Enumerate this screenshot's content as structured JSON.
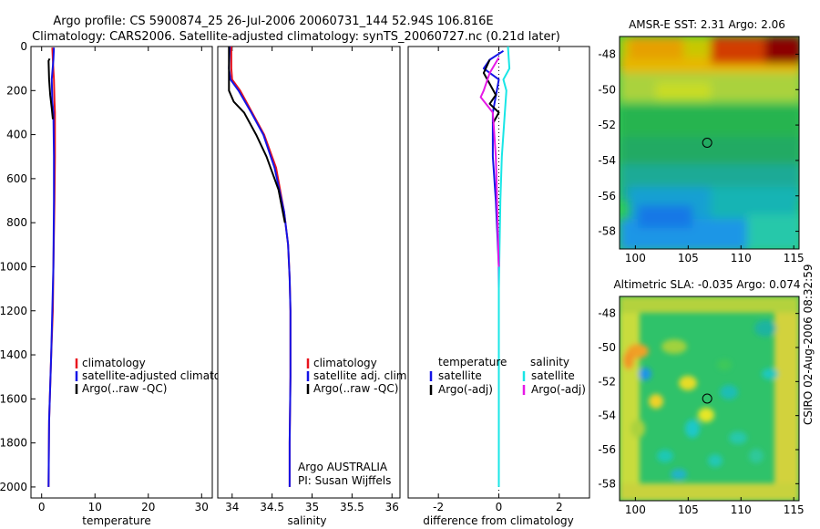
{
  "title": {
    "line1": "Argo profile: CS 5900874_25 26-Jul-2006 20060731_144 52.94S 106.816E",
    "line2": "Climatology: CARS2006. Satellite-adjusted climatology: synTS_20060727.nc (0.21d later)"
  },
  "colors": {
    "climatology": "#e8141e",
    "satellite": "#1414e6",
    "argo": "#000000",
    "satellite_salinity": "#19e6e6",
    "argo_adj_salinity": "#e619e6"
  },
  "chart_data": [
    {
      "id": "temperature",
      "type": "line",
      "xlabel": "temperature",
      "ylabel": "",
      "xlim": [
        -2,
        32
      ],
      "ylim": [
        2050,
        0
      ],
      "xticks": [
        0,
        10,
        20,
        30
      ],
      "yticks": [
        0,
        200,
        400,
        600,
        800,
        1000,
        1200,
        1400,
        1600,
        1800,
        2000
      ],
      "legend": [
        "climatology",
        "satellite-adjusted climatology",
        "Argo(..raw -QC)"
      ],
      "series": [
        {
          "name": "climatology",
          "color_key": "climatology",
          "x": [
            2.0,
            2.1,
            2.3,
            2.4,
            2.5,
            2.5,
            2.4,
            2.2,
            2.1,
            1.8,
            1.4,
            1.3
          ],
          "y": [
            5,
            60,
            150,
            250,
            300,
            500,
            700,
            1000,
            1200,
            1400,
            1700,
            2000
          ]
        },
        {
          "name": "satellite-adjusted climatology",
          "color_key": "satellite",
          "x": [
            2.3,
            2.2,
            1.9,
            2.0,
            2.2,
            2.3,
            2.3,
            2.2,
            2.0,
            1.8,
            1.4,
            1.3
          ],
          "y": [
            5,
            60,
            150,
            250,
            300,
            500,
            700,
            1000,
            1200,
            1400,
            1700,
            2000
          ]
        },
        {
          "name": "Argo(..raw -QC)",
          "color_key": "argo",
          "x": [
            1.5,
            1.3,
            1.4,
            1.6,
            1.9,
            2.1
          ],
          "y": [
            55,
            65,
            150,
            220,
            280,
            330
          ]
        }
      ]
    },
    {
      "id": "salinity",
      "type": "line",
      "xlabel": "salinity",
      "ylabel": "",
      "xlim": [
        33.82,
        36.1
      ],
      "ylim": [
        2050,
        0
      ],
      "xticks": [
        34,
        34.5,
        35,
        35.5,
        36
      ],
      "yticks": [],
      "legend": [
        "climatology",
        "satellite adj. clim.",
        "Argo(..raw -QC)"
      ],
      "annotations": [
        "Argo AUSTRALIA",
        "PI: Susan Wijffels"
      ],
      "series": [
        {
          "name": "climatology",
          "color_key": "climatology",
          "x": [
            33.99,
            33.99,
            34.0,
            34.1,
            34.25,
            34.4,
            34.55,
            34.65,
            34.7,
            34.72,
            34.73,
            34.73,
            34.72,
            34.72
          ],
          "y": [
            0,
            100,
            150,
            200,
            300,
            400,
            550,
            750,
            900,
            1050,
            1200,
            1500,
            1800,
            2000
          ]
        },
        {
          "name": "satellite adj. clim.",
          "color_key": "satellite",
          "x": [
            33.97,
            33.96,
            33.98,
            34.08,
            34.24,
            34.39,
            34.53,
            34.65,
            34.7,
            34.72,
            34.73,
            34.73,
            34.72,
            34.72
          ],
          "y": [
            0,
            100,
            150,
            200,
            300,
            400,
            550,
            750,
            900,
            1050,
            1200,
            1500,
            1800,
            2000
          ]
        },
        {
          "name": "Argo(..raw -QC)",
          "color_key": "argo",
          "x": [
            33.96,
            33.96,
            34.02,
            34.15,
            34.3,
            34.43,
            34.58,
            34.66
          ],
          "y": [
            0,
            200,
            250,
            300,
            400,
            500,
            650,
            800
          ]
        }
      ]
    },
    {
      "id": "difference",
      "type": "line",
      "xlabel": "difference from climatology",
      "ylabel": "",
      "xlim": [
        -3.0,
        3.0
      ],
      "ylim": [
        2050,
        0
      ],
      "xticks": [
        -2,
        0,
        2
      ],
      "yticks": [],
      "legend_headers": [
        "temperature",
        "salinity"
      ],
      "legend": [
        "satellite",
        "Argo(-adj)",
        "satellite",
        "Argo(-adj)"
      ],
      "series": [
        {
          "name": "temperature satellite",
          "color_key": "satellite",
          "x": [
            0.15,
            -0.3,
            -0.5,
            0.0,
            -0.2,
            -0.2,
            -0.1,
            0.0,
            0.0
          ],
          "y": [
            20,
            60,
            100,
            150,
            300,
            500,
            700,
            1000,
            1200
          ]
        },
        {
          "name": "temperature Argo(-adj)",
          "color_key": "argo",
          "x": [
            -0.3,
            -0.5,
            -0.1,
            -0.3,
            0.0,
            -0.2
          ],
          "y": [
            60,
            120,
            220,
            260,
            300,
            350
          ]
        },
        {
          "name": "salinity satellite",
          "color_key": "satellite_salinity",
          "x": [
            0.3,
            0.35,
            0.15,
            0.25,
            0.2,
            0.1,
            0.05,
            0.0,
            0.0
          ],
          "y": [
            0,
            100,
            150,
            200,
            300,
            500,
            700,
            1100,
            2000
          ]
        },
        {
          "name": "salinity Argo(-adj)",
          "color_key": "argo_adj_salinity",
          "x": [
            0.0,
            -0.3,
            -0.5,
            -0.6,
            -0.2,
            -0.1,
            0.0
          ],
          "y": [
            50,
            120,
            200,
            230,
            300,
            500,
            1000
          ]
        }
      ]
    },
    {
      "id": "sst-map",
      "type": "heatmap",
      "title": "AMSR-E SST: 2.31 Argo: 2.06",
      "xlim": [
        98.5,
        115.5
      ],
      "ylim": [
        -59,
        -47
      ],
      "xticks": [
        100,
        105,
        110,
        115
      ],
      "yticks": [
        -48,
        -50,
        -52,
        -54,
        -56,
        -58
      ],
      "marker": {
        "lon": 106.8,
        "lat": -53.0
      }
    },
    {
      "id": "sla-map",
      "type": "heatmap",
      "title": "Altimetric SLA: -0.035 Argo: 0.074",
      "xlim": [
        98.5,
        115.5
      ],
      "ylim": [
        -59,
        -47
      ],
      "xticks": [
        100,
        105,
        110,
        115
      ],
      "yticks": [
        -48,
        -50,
        -52,
        -54,
        -56,
        -58
      ],
      "marker": {
        "lon": 106.8,
        "lat": -53.0
      }
    }
  ],
  "side_label": "CSIRO 02-Aug-2006 08:32:59"
}
